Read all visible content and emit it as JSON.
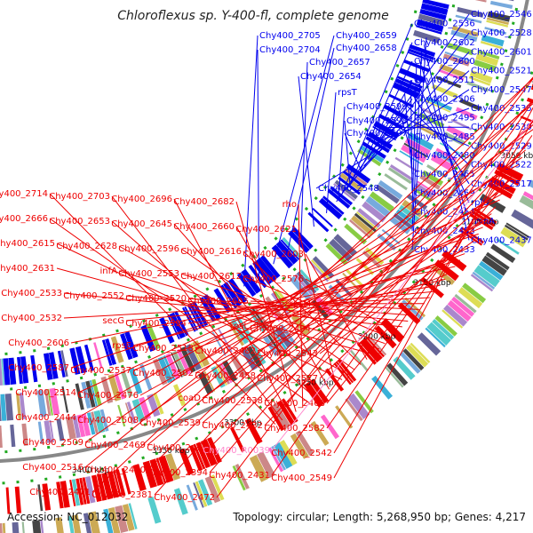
{
  "title": "Chloroflexus sp. Y-400-fl, complete genome",
  "footer": {
    "accession": "Accession: NC_012032",
    "summary": "Topology: circular; Length: 5,268,950 bp; Genes: 4,217"
  },
  "colors": {
    "forward": "#0000ee",
    "reverse": "#ee0000",
    "rna": "#ff88cc",
    "backbone": "#888888",
    "dots": "#22aa22"
  },
  "scale_labels": [
    "3400 kbp",
    "3350 kbp",
    "3300 kbp",
    "3250 kbp",
    "3200 kbp",
    "3150 kbp",
    "3100 kbp",
    "3050 kbp",
    "3000 kbp"
  ],
  "top_labels": [
    "Chy400_2705",
    "Chy400_2704",
    "Chy400_2659",
    "Chy400_2658",
    "Chy400_2657",
    "Chy400_2654",
    "rpsT",
    "Chy400_2599",
    "Chy400_2598",
    "Chy400_2597",
    "Chy400_2548"
  ],
  "right_labels": [
    "Chy400_2546",
    "Chy400_2536",
    "Chy400_2528",
    "Chy400_2602",
    "Chy400_2601",
    "Chy400_2600",
    "Chy400_2521",
    "Chy400_2511",
    "Chy400_2547",
    "Chy400_2506",
    "Chy400_2535",
    "Chy400_2495",
    "Chy400_2530",
    "Chy400_2485",
    "Chy400_2529",
    "Chy400_2480",
    "Chy400_2522",
    "Chy400_2465",
    "Chy400_2517",
    "Chy400_2459",
    "rplU",
    "Chy400_2454",
    "rpmA",
    "Chy400_2453",
    "Chy400_2437",
    "Chy400_2433"
  ],
  "left_labels": [
    "Chy400_2714",
    "Chy400_2703",
    "Chy400_2696",
    "Chy400_2682",
    "rho",
    "Chy400_2666",
    "Chy400_2653",
    "Chy400_2645",
    "Chy400_2660",
    "Chy400_2621",
    "Chy400_2615",
    "Chy400_2628",
    "Chy400_2596",
    "Chy400_2616",
    "Chy400_2603",
    "Chy400_2631",
    "infA",
    "Chy400_2553",
    "Chy400_2612",
    "Chy400_2576",
    "Chy400_2533",
    "Chy400_2552",
    "Chy400_2520",
    "Chy400_2605",
    "rpsM",
    "Chy400_2532",
    "secG",
    "Chy400_2594",
    "rpsL",
    "Chy400_2494",
    "Chy400_2606",
    "rpsE",
    "Chy400_2518",
    "Chy400_2482",
    "Chy400_2543",
    "Chy400_2587",
    "Chy400_2537",
    "Chy400_2502",
    "Chy400_2458",
    "Chy400_2577",
    "Chy400_2514",
    "Chy400_2476",
    "coaD",
    "Chy400_2538",
    "Chy400_2468",
    "Chy400_2444",
    "Chy400_2508",
    "Chy400_2539",
    "Chy400_2432",
    "Chy400_2582",
    "Chy400_2509",
    "Chy400_2469",
    "Chy400_2411",
    "Chy400_R0039",
    "Chy400_2542",
    "Chy400_2516",
    "Chy400_2470",
    "Chy400_2394",
    "Chy400_2431",
    "Chy400_2549",
    "Chy400_2471",
    "Chy400_2381",
    "Chy400_2472"
  ]
}
